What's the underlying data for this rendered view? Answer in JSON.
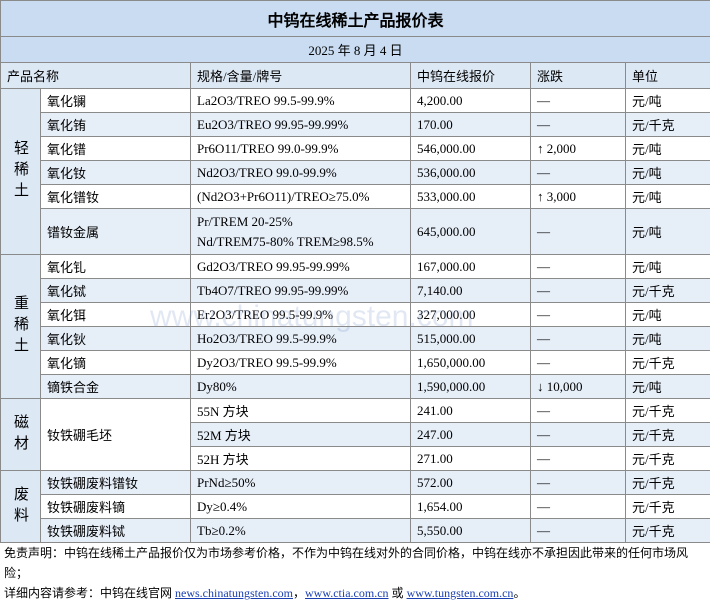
{
  "header": {
    "title": "中钨在线稀土产品报价表",
    "date": "2025 年 8 月 4 日"
  },
  "table": {
    "columns": [
      "产品名称",
      "规格/含量/牌号",
      "中钨在线报价",
      "涨跌",
      "单位"
    ],
    "groups": [
      {
        "label": "轻稀土",
        "rows": [
          [
            "氧化镧",
            "La2O3/TREO 99.5-99.9%",
            "4,200.00",
            "—",
            "元/吨"
          ],
          [
            "氧化铕",
            "Eu2O3/TREO 99.95-99.99%",
            "170.00",
            "—",
            "元/千克"
          ],
          [
            "氧化镨",
            "Pr6O11/TREO 99.0-99.9%",
            "546,000.00",
            "↑ 2,000",
            "元/吨"
          ],
          [
            "氧化钕",
            "Nd2O3/TREO 99.0-99.9%",
            "536,000.00",
            "—",
            "元/吨"
          ],
          [
            "氧化镨钕",
            "(Nd2O3+Pr6O11)/TREO≥75.0%",
            "533,000.00",
            "↑ 3,000",
            "元/吨"
          ],
          [
            "镨钕金属",
            "Pr/TREM 20-25%\nNd/TREM75-80% TREM≥98.5%",
            "645,000.00",
            "—",
            "元/吨"
          ]
        ]
      },
      {
        "label": "重稀土",
        "rows": [
          [
            "氧化钆",
            "Gd2O3/TREO 99.95-99.99%",
            "167,000.00",
            "—",
            "元/吨"
          ],
          [
            "氧化铽",
            "Tb4O7/TREO 99.95-99.99%",
            "7,140.00",
            "—",
            "元/千克"
          ],
          [
            "氧化铒",
            "Er2O3/TREO 99.5-99.9%",
            "327,000.00",
            "—",
            "元/吨"
          ],
          [
            "氧化钬",
            "Ho2O3/TREO 99.5-99.9%",
            "515,000.00",
            "—",
            "元/吨"
          ],
          [
            "氧化镝",
            "Dy2O3/TREO 99.5-99.9%",
            "1,650,000.00",
            "—",
            "元/千克"
          ],
          [
            "镝铁合金",
            "Dy80%",
            "1,590,000.00",
            "↓ 10,000",
            "元/吨"
          ]
        ]
      },
      {
        "label": "磁材",
        "name": "钕铁硼毛坯",
        "rows": [
          [
            "55N 方块",
            "241.00",
            "—",
            "元/千克"
          ],
          [
            "52M 方块",
            "247.00",
            "—",
            "元/千克"
          ],
          [
            "52H 方块",
            "271.00",
            "—",
            "元/千克"
          ]
        ]
      },
      {
        "label": "废料",
        "rows": [
          [
            "钕铁硼废料镨钕",
            "PrNd≥50%",
            "572.00",
            "—",
            "元/千克"
          ],
          [
            "钕铁硼废料镝",
            "Dy≥0.4%",
            "1,654.00",
            "—",
            "元/千克"
          ],
          [
            "钕铁硼废料铽",
            "Tb≥0.2%",
            "5,550.00",
            "—",
            "元/千克"
          ]
        ]
      }
    ]
  },
  "watermark": "www.chinatungsten.com",
  "footer": {
    "disclaimer": "免责声明：中钨在线稀土产品报价仅为市场参考价格，不作为中钨在线对外的合同价格，中钨在线亦不承担因此带来的任何市场风险；",
    "reference": [
      {
        "text": "详细内容请参考：中钨在线官网 "
      },
      {
        "text": "news.chinatungsten.com",
        "link": true
      },
      {
        "text": "，"
      },
      {
        "text": "www.ctia.com.cn",
        "link": true
      },
      {
        "text": " 或 "
      },
      {
        "text": "www.tungsten.com.cn",
        "link": true
      },
      {
        "text": "。"
      }
    ]
  }
}
